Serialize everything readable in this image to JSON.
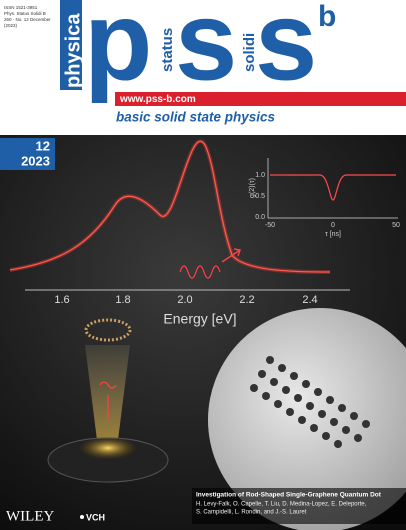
{
  "header": {
    "issn": "ISSN 1521-3951",
    "journal_ref": "Phys. Status Solidi B",
    "volume": "260 · No. 12 December",
    "year_ref": "(2023)",
    "physica": "physica",
    "logo_letters": [
      "p",
      "s",
      "s"
    ],
    "logo_superscript": "b",
    "status": "status",
    "solidi": "solidi",
    "url": "www.pss-b.com",
    "tagline": "basic solid state physics"
  },
  "issue": {
    "number": "12",
    "year": "2023"
  },
  "figure": {
    "x_ticks": [
      "1.6",
      "1.8",
      "2.0",
      "2.2",
      "2.4"
    ],
    "x_label": "Energy [eV]",
    "inset": {
      "y_label": "g(2)(τ)",
      "y_ticks": [
        "1.0",
        "0.5",
        "0.0"
      ],
      "x_ticks": [
        "-50",
        "0",
        "50"
      ],
      "x_label": "τ [ns]"
    }
  },
  "article": {
    "title": "Investigation of Rod-Shaped Single-Graphene Quantum Dot",
    "authors_line1": "H. Levy-Falk, O. Capelle, T. Liu, D. Medina-Lopez, E. Deleporte,",
    "authors_line2": "S. Campidelli, L. Rondin, and J.-S. Lauret"
  },
  "publisher": {
    "name": "WILEY",
    "imprint": "VCH"
  }
}
